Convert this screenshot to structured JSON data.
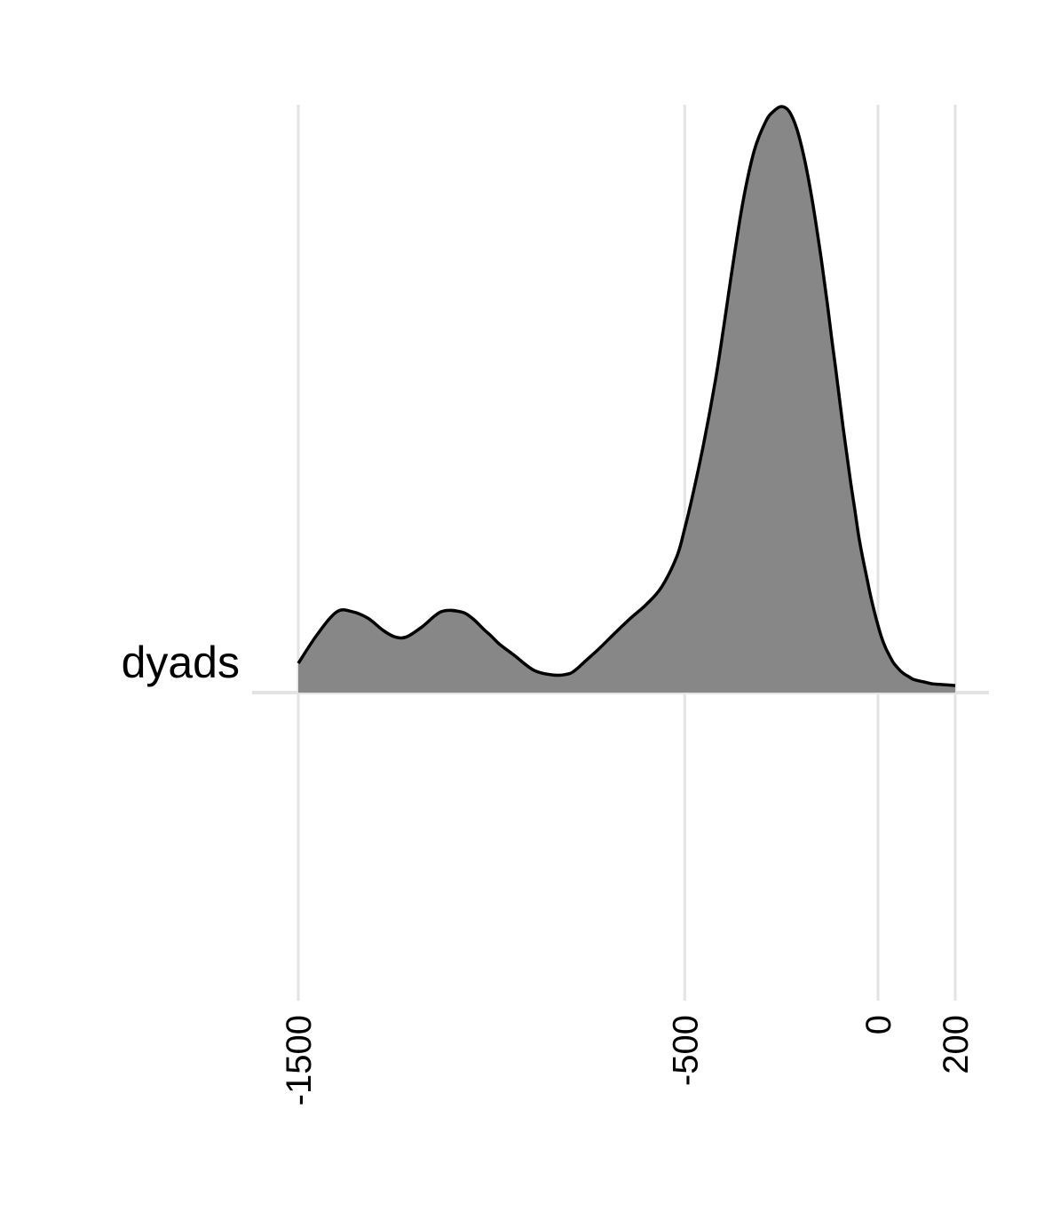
{
  "chart_data": {
    "type": "area",
    "subtype": "ridgeline-density",
    "title": "",
    "xlabel": "",
    "ylabel": "",
    "xlim": [
      -1500,
      200
    ],
    "x_ticks": [
      -1500,
      -500,
      0,
      200
    ],
    "x_tick_labels": [
      "-1500",
      "-500",
      "0",
      "200"
    ],
    "categories": [
      "dyads"
    ],
    "grid": "vertical major gridlines on",
    "fill_color": "#878787",
    "line_color": "#000000",
    "grid_color": "#e3e3e3",
    "series": [
      {
        "name": "dyads",
        "x": [
          -1500,
          -1450,
          -1400,
          -1360,
          -1320,
          -1280,
          -1250,
          -1220,
          -1180,
          -1130,
          -1080,
          -1050,
          -1020,
          -1000,
          -980,
          -940,
          -890,
          -840,
          -800,
          -780,
          -760,
          -720,
          -680,
          -640,
          -600,
          -560,
          -520,
          -500,
          -480,
          -450,
          -420,
          -400,
          -380,
          -350,
          -320,
          -290,
          -270,
          -250,
          -230,
          -210,
          -190,
          -170,
          -150,
          -140,
          -130,
          -120,
          -110,
          -100,
          -90,
          -80,
          -70,
          -60,
          -50,
          -40,
          -30,
          -20,
          -10,
          0,
          10,
          20,
          30,
          40,
          50,
          60,
          70,
          80,
          90,
          100,
          120,
          140,
          160,
          180,
          200
        ],
        "density": [
          0.05,
          0.1,
          0.138,
          0.138,
          0.127,
          0.106,
          0.095,
          0.095,
          0.112,
          0.138,
          0.138,
          0.127,
          0.108,
          0.096,
          0.083,
          0.063,
          0.038,
          0.03,
          0.032,
          0.04,
          0.052,
          0.076,
          0.102,
          0.127,
          0.15,
          0.18,
          0.233,
          0.28,
          0.335,
          0.428,
          0.535,
          0.62,
          0.71,
          0.835,
          0.925,
          0.975,
          0.992,
          1.0,
          0.992,
          0.962,
          0.91,
          0.84,
          0.755,
          0.708,
          0.659,
          0.606,
          0.556,
          0.504,
          0.452,
          0.404,
          0.356,
          0.313,
          0.268,
          0.232,
          0.2,
          0.168,
          0.14,
          0.115,
          0.093,
          0.076,
          0.063,
          0.051,
          0.043,
          0.036,
          0.031,
          0.027,
          0.023,
          0.021,
          0.018,
          0.015,
          0.014,
          0.013,
          0.012
        ]
      }
    ]
  }
}
